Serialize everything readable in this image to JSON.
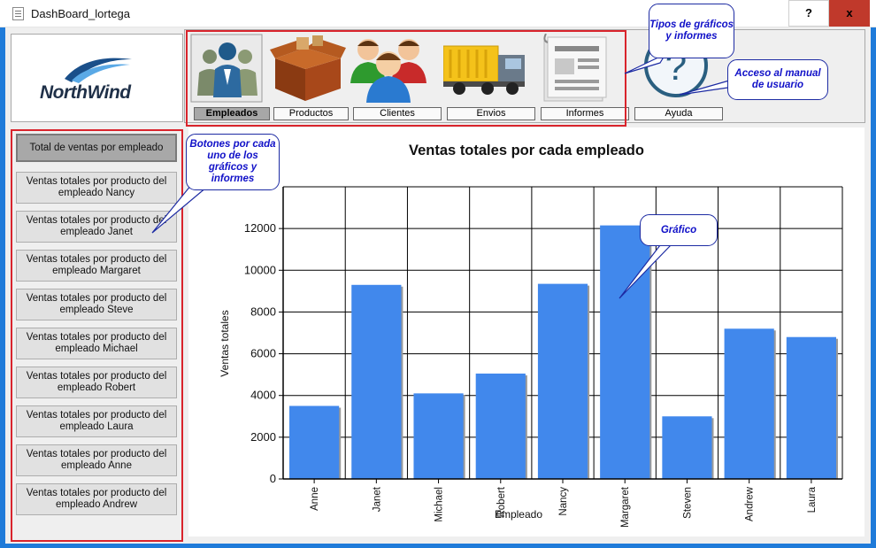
{
  "window": {
    "title": "DashBoard_lortega",
    "help_label": "?",
    "close_label": "x"
  },
  "logo": {
    "text": "NorthWind"
  },
  "toolbar": {
    "items": [
      {
        "label": "Empleados",
        "icon": "employees-icon",
        "active": true
      },
      {
        "label": "Productos",
        "icon": "products-box-icon",
        "active": false
      },
      {
        "label": "Clientes",
        "icon": "customers-icon",
        "active": false
      },
      {
        "label": "Envios",
        "icon": "delivery-truck-icon",
        "active": false
      },
      {
        "label": "Informes",
        "icon": "reports-icon",
        "active": false
      },
      {
        "label": "Ayuda",
        "icon": "help-question-icon",
        "active": false
      }
    ]
  },
  "sidebar": {
    "items": [
      {
        "label": "Total de ventas por empleado",
        "active": true
      },
      {
        "label": "Ventas totales por producto del empleado Nancy"
      },
      {
        "label": "Ventas totales por producto del empleado Janet"
      },
      {
        "label": "Ventas totales por producto del empleado Margaret"
      },
      {
        "label": "Ventas totales por producto del empleado Steve"
      },
      {
        "label": "Ventas totales por producto del empleado Michael"
      },
      {
        "label": "Ventas totales por producto del empleado Robert"
      },
      {
        "label": "Ventas totales por producto del empleado Laura"
      },
      {
        "label": "Ventas totales por producto del empleado Anne"
      },
      {
        "label": "Ventas totales por producto del empleado Andrew"
      }
    ]
  },
  "callouts": {
    "chart_types": "Tipos de gráficos y informes",
    "manual": "Acceso al manual de usuario",
    "buttons": "Botones por cada uno de los gráficos y informes",
    "chart": "Gráfico"
  },
  "colors": {
    "bar": "#4188ec",
    "highlight_border": "#d9242c",
    "callout_text": "#1111c8",
    "window_frame": "#1f7bd9"
  },
  "chart_data": {
    "type": "bar",
    "title": "Ventas totales por cada empleado",
    "xlabel": "Empleado",
    "ylabel": "Ventas totales",
    "categories": [
      "Anne",
      "Janet",
      "Michael",
      "Robert",
      "Nancy",
      "Margaret",
      "Steven",
      "Andrew",
      "Laura"
    ],
    "values": [
      3500,
      9300,
      4100,
      5050,
      9350,
      12150,
      3000,
      7200,
      6800
    ],
    "ylim": [
      0,
      14000
    ],
    "yticks": [
      0,
      2000,
      4000,
      6000,
      8000,
      10000,
      12000
    ],
    "grid": true
  }
}
